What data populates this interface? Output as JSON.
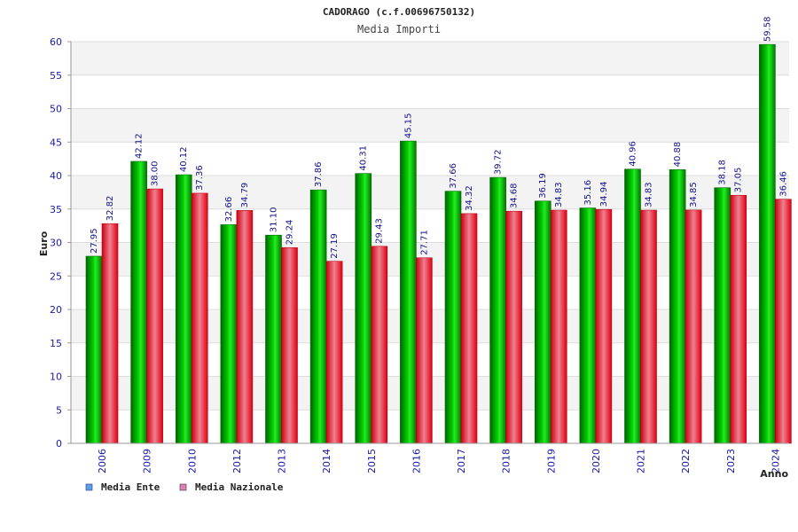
{
  "chart_data": {
    "type": "bar",
    "title": "CADORAGO (c.f.00696750132)",
    "subtitle": "Media Importi",
    "xlabel": "Anno",
    "ylabel": "Euro",
    "ylim": [
      0,
      60
    ],
    "yticks": [
      0,
      5,
      10,
      15,
      20,
      25,
      30,
      35,
      40,
      45,
      50,
      55,
      60
    ],
    "grid": true,
    "legend_position": "bottom-left",
    "categories": [
      "2006",
      "2009",
      "2010",
      "2012",
      "2013",
      "2014",
      "2015",
      "2016",
      "2017",
      "2018",
      "2019",
      "2020",
      "2021",
      "2022",
      "2023",
      "2024"
    ],
    "series": [
      {
        "name": "Media Ente",
        "color": "#00bb00",
        "legend_color": "#5aa0f0",
        "values": [
          27.95,
          42.12,
          40.12,
          32.66,
          31.1,
          37.86,
          40.31,
          45.15,
          37.66,
          39.72,
          36.19,
          35.16,
          40.96,
          40.88,
          38.18,
          59.58
        ],
        "labels": [
          "27.95",
          "42.12",
          "40.12",
          "32.66",
          "31.10",
          "37.86",
          "40.31",
          "45.15",
          "37.66",
          "39.72",
          "36.19",
          "35.16",
          "40.96",
          "40.88",
          "38.18",
          "59.58"
        ]
      },
      {
        "name": "Media Nazionale",
        "color": "#ee1122",
        "legend_color": "#e080b0",
        "values": [
          32.82,
          38.0,
          37.36,
          34.79,
          29.24,
          27.19,
          29.43,
          27.71,
          34.32,
          34.68,
          34.83,
          34.94,
          34.83,
          34.85,
          37.05,
          36.46
        ],
        "labels": [
          "32.82",
          "38.00",
          "37.36",
          "34.79",
          "29.24",
          "27.19",
          "29.43",
          "27.71",
          "34.32",
          "34.68",
          "34.83",
          "34.94",
          "34.83",
          "34.85",
          "37.05",
          "36.46"
        ]
      }
    ]
  }
}
